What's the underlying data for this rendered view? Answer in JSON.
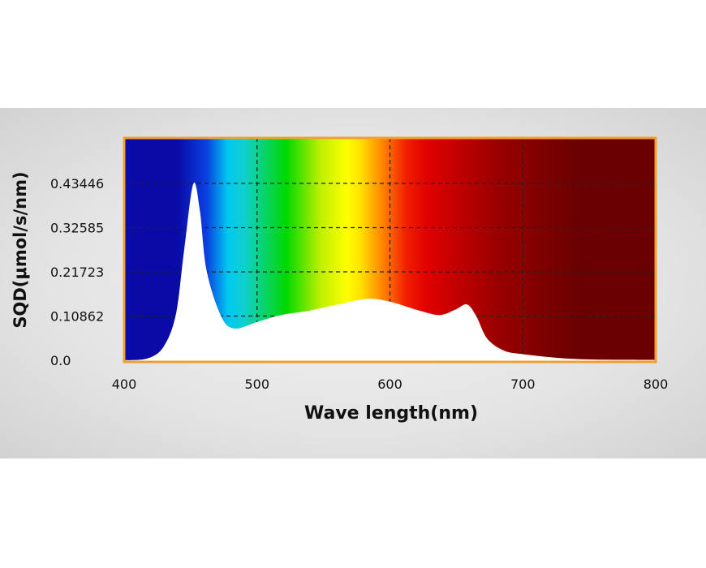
{
  "chart_data": {
    "type": "area",
    "title": "",
    "xlabel": "Wave length(nm)",
    "ylabel": "SQD(μmol/s/nm)",
    "xlim": [
      400,
      800
    ],
    "ylim": [
      0,
      0.5
    ],
    "x_ticks": [
      400,
      500,
      600,
      700,
      800
    ],
    "x_tick_labels": [
      "400",
      "500",
      "600",
      "700",
      "800"
    ],
    "y_ticks": [
      0,
      0.10862,
      0.21723,
      0.32585,
      0.43446
    ],
    "y_tick_labels": [
      "0.0",
      "0.10862",
      "0.21723",
      "0.32585",
      "0.43446"
    ],
    "grid": true,
    "grid_style": "dashed",
    "frame_color": "#f0a030",
    "curve_fill": "#ffffff",
    "background": "visible light spectrum gradient",
    "series": [
      {
        "x": [
          400,
          418,
          430,
          439,
          445,
          452,
          457,
          462,
          473,
          483,
          500,
          518,
          538,
          561,
          583,
          600,
          620,
          637,
          649,
          658,
          665,
          673,
          685,
          700,
          741,
          800
        ],
        "y": [
          0.0,
          0.005,
          0.035,
          0.114,
          0.267,
          0.433,
          0.367,
          0.221,
          0.108,
          0.078,
          0.094,
          0.111,
          0.121,
          0.137,
          0.151,
          0.144,
          0.124,
          0.111,
          0.124,
          0.137,
          0.108,
          0.054,
          0.025,
          0.015,
          0.003,
          0.001
        ]
      }
    ],
    "spectrum_stops": [
      {
        "nm": 400,
        "color": "#0a0aa6"
      },
      {
        "nm": 440,
        "color": "#0a0aa6"
      },
      {
        "nm": 462,
        "color": "#0a40e0"
      },
      {
        "nm": 478,
        "color": "#00c8f0"
      },
      {
        "nm": 490,
        "color": "#10d0d0"
      },
      {
        "nm": 522,
        "color": "#00d800"
      },
      {
        "nm": 548,
        "color": "#c0f000"
      },
      {
        "nm": 568,
        "color": "#ffff00"
      },
      {
        "nm": 578,
        "color": "#ffe000"
      },
      {
        "nm": 598,
        "color": "#ff7000"
      },
      {
        "nm": 612,
        "color": "#f02000"
      },
      {
        "nm": 628,
        "color": "#e00000"
      },
      {
        "nm": 680,
        "color": "#9a0000"
      },
      {
        "nm": 740,
        "color": "#6a0000"
      },
      {
        "nm": 800,
        "color": "#6a0000"
      }
    ]
  }
}
